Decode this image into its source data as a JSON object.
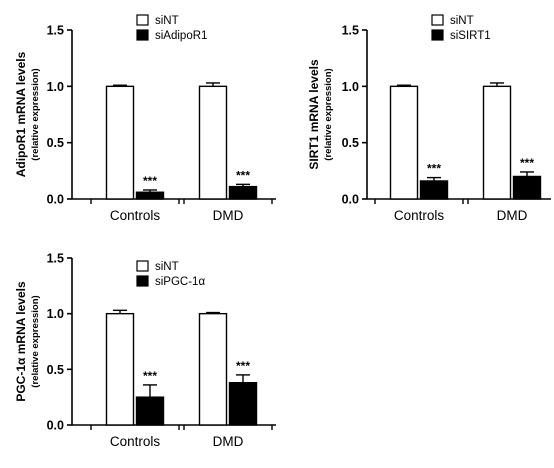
{
  "chart_data": [
    {
      "type": "bar",
      "ylabel": "AdipoR1 mRNA levels",
      "ylabel_sub": "(relative expression)",
      "categories": [
        "Controls",
        "DMD"
      ],
      "series": [
        {
          "name": "siNT",
          "color": "#ffffff",
          "values": [
            1.0,
            1.0
          ],
          "errors": [
            0.01,
            0.03
          ]
        },
        {
          "name": "siAdipoR1",
          "color": "#000000",
          "values": [
            0.06,
            0.11
          ],
          "errors": [
            0.02,
            0.02
          ]
        }
      ],
      "annotations": [
        {
          "category": "Controls",
          "series": "siAdipoR1",
          "text": "***"
        },
        {
          "category": "DMD",
          "series": "siAdipoR1",
          "text": "***"
        }
      ],
      "ylim": [
        0,
        1.5
      ],
      "yticks": [
        "0.0",
        "0.5",
        "1.0",
        "1.5"
      ],
      "grid": false,
      "legend_position": "top-center"
    },
    {
      "type": "bar",
      "ylabel": "SIRT1 mRNA levels",
      "ylabel_sub": "(relative expression)",
      "categories": [
        "Controls",
        "DMD"
      ],
      "series": [
        {
          "name": "siNT",
          "color": "#ffffff",
          "values": [
            1.0,
            1.0
          ],
          "errors": [
            0.01,
            0.03
          ]
        },
        {
          "name": "siSIRT1",
          "color": "#000000",
          "values": [
            0.16,
            0.2
          ],
          "errors": [
            0.03,
            0.04
          ]
        }
      ],
      "annotations": [
        {
          "category": "Controls",
          "series": "siSIRT1",
          "text": "***"
        },
        {
          "category": "DMD",
          "series": "siSIRT1",
          "text": "***"
        }
      ],
      "ylim": [
        0,
        1.5
      ],
      "yticks": [
        "0.0",
        "0.5",
        "1.0",
        "1.5"
      ],
      "grid": false,
      "legend_position": "top-center"
    },
    {
      "type": "bar",
      "ylabel": "PGC-1α mRNA levels",
      "ylabel_sub": "(relative expression)",
      "categories": [
        "Controls",
        "DMD"
      ],
      "series": [
        {
          "name": "siNT",
          "color": "#ffffff",
          "values": [
            1.0,
            1.0
          ],
          "errors": [
            0.03,
            0.01
          ]
        },
        {
          "name": "siPGC-1α",
          "color": "#000000",
          "values": [
            0.25,
            0.38
          ],
          "errors": [
            0.11,
            0.07
          ]
        }
      ],
      "annotations": [
        {
          "category": "Controls",
          "series": "siPGC-1α",
          "text": "***"
        },
        {
          "category": "DMD",
          "series": "siPGC-1α",
          "text": "***"
        }
      ],
      "ylim": [
        0,
        1.5
      ],
      "yticks": [
        "0.0",
        "0.5",
        "1.0",
        "1.5"
      ],
      "grid": false,
      "legend_position": "top-center"
    }
  ]
}
